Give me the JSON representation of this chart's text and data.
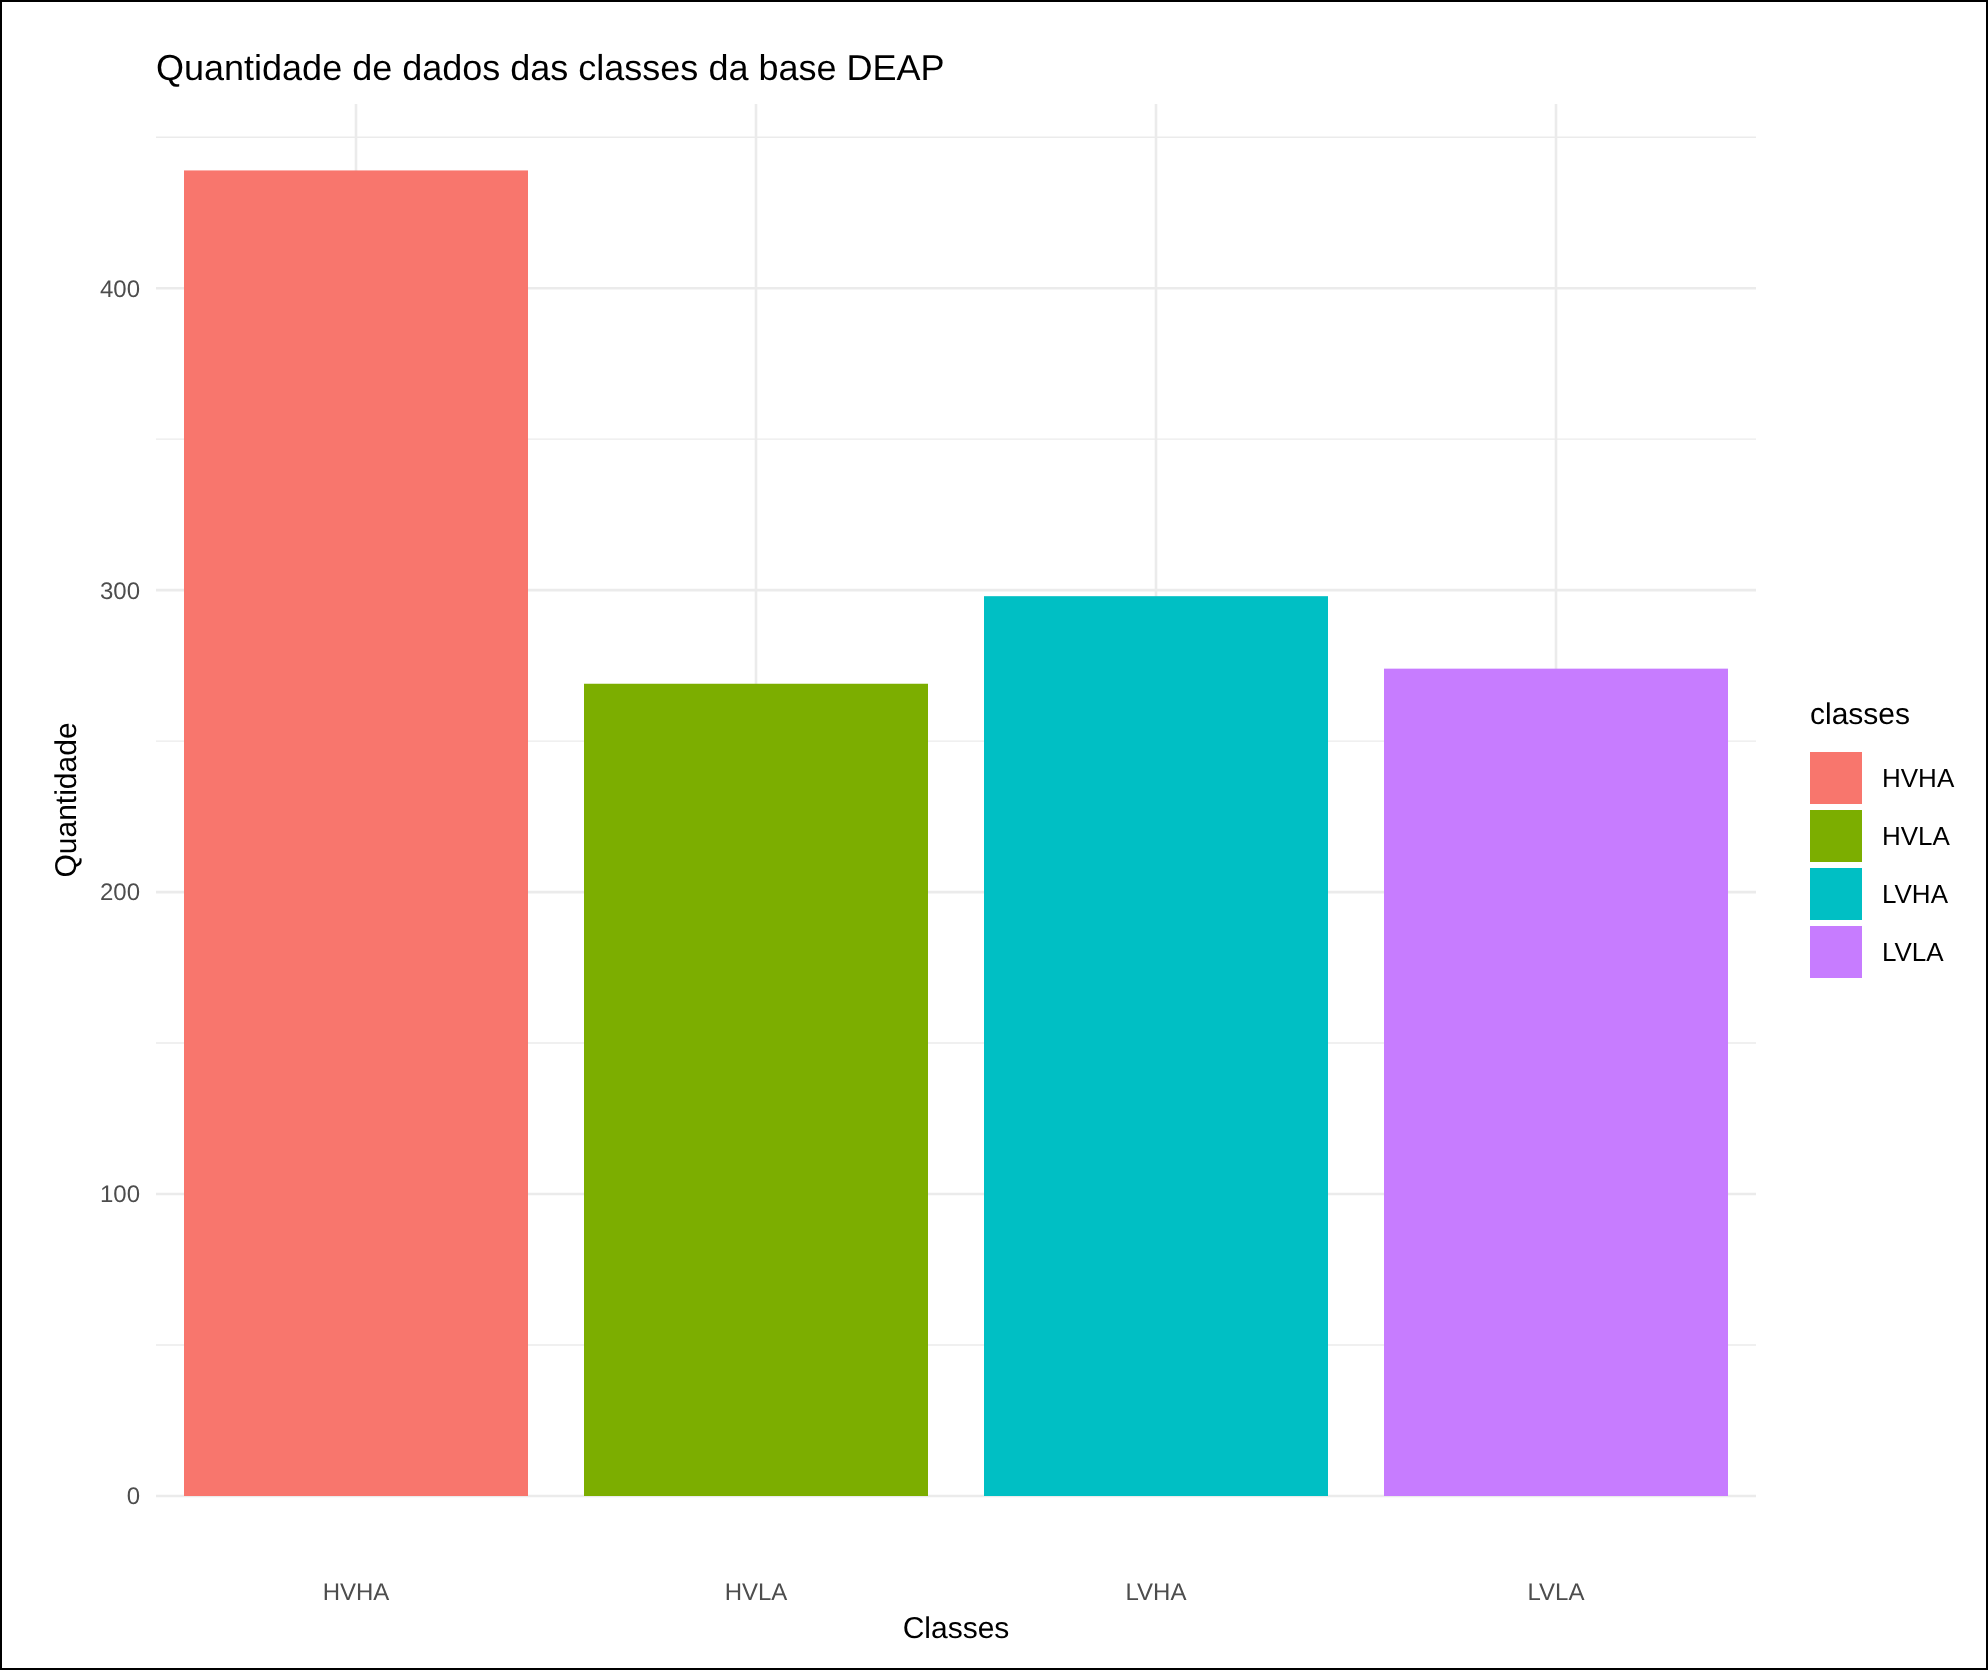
{
  "chart_data": {
    "type": "bar",
    "title": "Quantidade de dados das classes da base DEAP",
    "xlabel": "Classes",
    "ylabel": "Quantidade",
    "legend_title": "classes",
    "categories": [
      "HVHA",
      "HVLA",
      "LVHA",
      "LVLA"
    ],
    "series": [
      {
        "name": "HVHA",
        "color": "#f8766d",
        "values": [
          439,
          null,
          null,
          null
        ]
      },
      {
        "name": "HVLA",
        "color": "#7cae00",
        "values": [
          null,
          269,
          null,
          null
        ]
      },
      {
        "name": "LVHA",
        "color": "#00bfc4",
        "values": [
          null,
          null,
          298,
          null
        ]
      },
      {
        "name": "LVLA",
        "color": "#c77cff",
        "values": [
          null,
          null,
          null,
          274
        ]
      }
    ],
    "ylim": [
      0,
      461
    ],
    "yticks": [
      0,
      {
        "value": 50,
        "label": null
      },
      100,
      {
        "value": 150,
        "label": null
      },
      200,
      {
        "value": 250,
        "label": null
      },
      300,
      {
        "value": 350,
        "label": null
      },
      400,
      {
        "value": 450,
        "label": null
      }
    ],
    "grid": true,
    "legend": "right"
  }
}
